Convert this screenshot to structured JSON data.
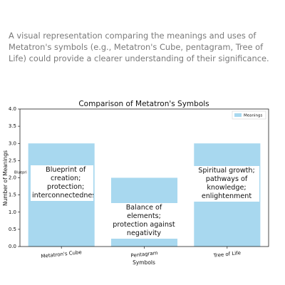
{
  "intro": "A visual representation comparing the meanings and uses of Metatron's symbols (e.g., Metatron's Cube, pentagram, Tree of Life) could provide a clearer understanding of their significance.",
  "chart_data": {
    "type": "bar",
    "title": "Comparison of Metatron's Symbols",
    "x_label": "Symbols",
    "y_label": "Number of Meanings",
    "categories": [
      "Metatron's Cube",
      "Pentagram",
      "Tree of Life"
    ],
    "series": [
      {
        "name": "Meanings",
        "color": "#a8d8ef",
        "values": [
          3,
          2,
          3
        ]
      }
    ],
    "annotations": [
      "Blueprint of creation; protection; interconnectedness",
      "Balance of elements; protection against negativity",
      "Spiritual growth; pathways of knowledge; enlightenment"
    ],
    "clipped_text": "Bluepri",
    "ylim": [
      0,
      4
    ],
    "yticks": [
      {
        "value": 0,
        "label": "0.0"
      },
      {
        "value": 0.5,
        "label": "0.5"
      },
      {
        "value": 1,
        "label": "1.0"
      },
      {
        "value": 1.5,
        "label": "1.5"
      },
      {
        "value": 2,
        "label": "2.0"
      },
      {
        "value": 2.5,
        "label": "2.5"
      },
      {
        "value": 3,
        "label": "3.0"
      },
      {
        "value": 3.5,
        "label": "3.5"
      },
      {
        "value": 4,
        "label": "4.0"
      }
    ],
    "legend": "upper right"
  }
}
